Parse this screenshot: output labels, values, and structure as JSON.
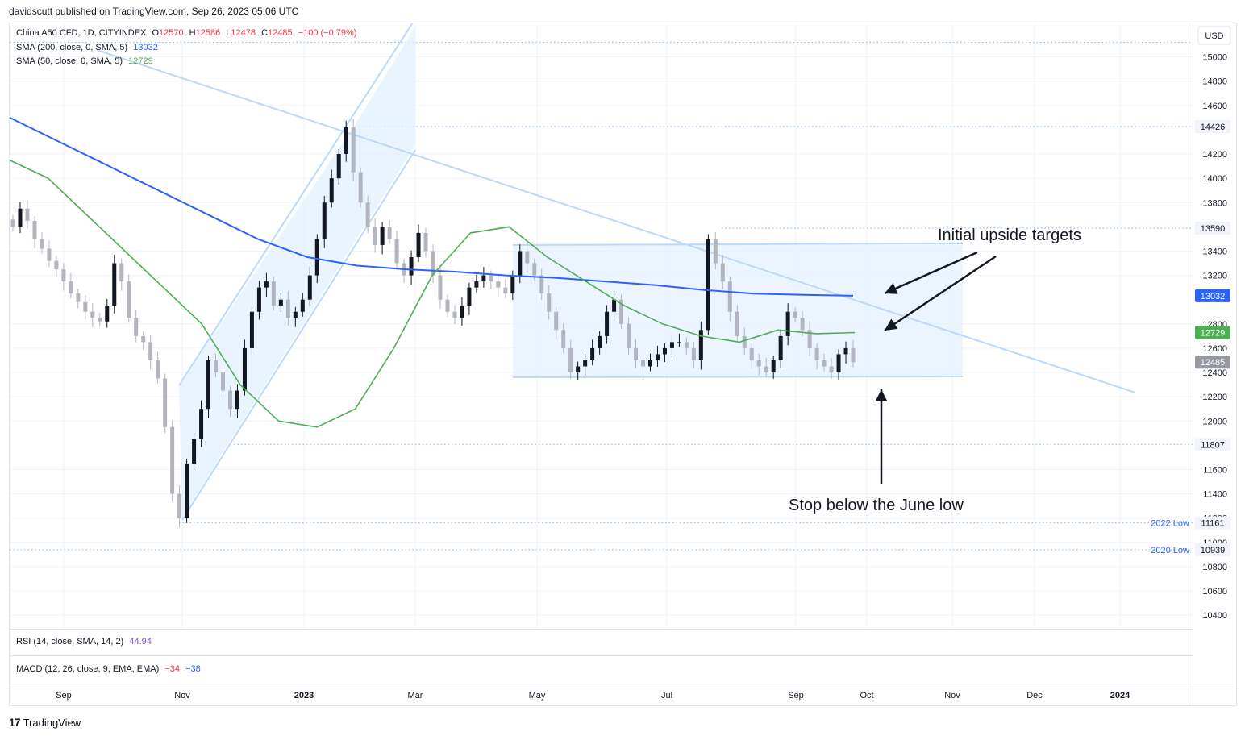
{
  "publisher": "davidscutt published on TradingView.com, Sep 26, 2023 05:06 UTC",
  "legend": {
    "symbol": "China A50 CFD, 1D, CITYINDEX",
    "o_label": "O",
    "o": "12570",
    "h_label": "H",
    "h": "12586",
    "l_label": "L",
    "l": "12478",
    "c_label": "C",
    "c": "12485",
    "change": "−100 (−0.79%)",
    "sma200_label": "SMA (200, close, 0, SMA, 5)",
    "sma200_value": "13032",
    "sma50_label": "SMA (50, close, 0, SMA, 5)",
    "sma50_value": "12729"
  },
  "indicators": {
    "rsi_label": "RSI (14, close, SMA, 14, 2)",
    "rsi_value": "44.94",
    "macd_label": "MACD (12, 26, close, 9, EMA, EMA)",
    "macd_v1": "−34",
    "macd_v2": "−38"
  },
  "currency": "USD",
  "brand": "TradingView",
  "colors": {
    "up": "#131722",
    "down": "#b2b5be",
    "sma200": "#2962ff",
    "sma50": "#4caf50",
    "trendline": "#bbd9fb",
    "channel_fill": "#e3f0ff",
    "red": "#f23645",
    "axis_text": "#131722"
  },
  "chart_data": {
    "type": "candlestick",
    "y_ticks": [
      15000,
      14800,
      14600,
      14200,
      14000,
      13800,
      13400,
      13200,
      12800,
      12600,
      12400,
      12200,
      12000,
      11600,
      11400,
      11200,
      11000,
      10800,
      10600,
      10400
    ],
    "ylim": [
      10300,
      15200
    ],
    "x_ticks": [
      {
        "label": "Sep",
        "bold": false,
        "index": 0
      },
      {
        "label": "Nov",
        "bold": false,
        "index": 1
      },
      {
        "label": "2023",
        "bold": true,
        "index": 2
      },
      {
        "label": "Mar",
        "bold": false,
        "index": 3
      },
      {
        "label": "May",
        "bold": false,
        "index": 4
      },
      {
        "label": "Jul",
        "bold": false,
        "index": 5
      },
      {
        "label": "Sep",
        "bold": false,
        "index": 6
      },
      {
        "label": "Oct",
        "bold": false,
        "index": 7
      },
      {
        "label": "Nov",
        "bold": false,
        "index": 8
      },
      {
        "label": "Dec",
        "bold": false,
        "index": 9
      },
      {
        "label": "2024",
        "bold": true,
        "index": 10
      }
    ],
    "price_tags": [
      {
        "value": "14426",
        "price": 14426,
        "style": "gray"
      },
      {
        "value": "13590",
        "price": 13590,
        "style": "gray"
      },
      {
        "value": "13032",
        "price": 13032,
        "style": "blue"
      },
      {
        "value": "12729",
        "price": 12729,
        "style": "green"
      },
      {
        "value": "12485",
        "price": 12485,
        "style": "dark"
      },
      {
        "value": "11807",
        "price": 11807,
        "style": "gray"
      },
      {
        "value": "11161",
        "price": 11161,
        "style": "gray",
        "note": "2022 Low"
      },
      {
        "value": "10939",
        "price": 10939,
        "style": "gray",
        "note": "2020 Low"
      }
    ],
    "dotted_levels": [
      15120,
      14426,
      13590,
      11807,
      11161,
      10939
    ],
    "annotations": [
      {
        "text": "Initial upside targets"
      },
      {
        "text": "Stop below the June low"
      }
    ],
    "candles_close": [
      13600,
      13750,
      13650,
      13500,
      13420,
      13320,
      13250,
      13150,
      13050,
      12980,
      12900,
      12850,
      12820,
      12950,
      13300,
      13150,
      12850,
      12700,
      12650,
      12500,
      12350,
      11950,
      11400,
      11200,
      11650,
      11850,
      12100,
      12500,
      12400,
      12250,
      12100,
      12250,
      12600,
      12900,
      13100,
      13150,
      12950,
      13000,
      12850,
      12900,
      13000,
      13200,
      13500,
      13800,
      14000,
      14200,
      14420,
      14050,
      13800,
      13600,
      13450,
      13600,
      13500,
      13300,
      13200,
      13350,
      13550,
      13400,
      13200,
      13000,
      12900,
      12850,
      12950,
      13100,
      13150,
      13200,
      13150,
      13100,
      13050,
      13200,
      13400,
      13300,
      13200,
      13050,
      12900,
      12750,
      12600,
      12400,
      12450,
      12500,
      12600,
      12700,
      12900,
      13000,
      12800,
      12600,
      12500,
      12450,
      12500,
      12550,
      12600,
      12650,
      12650,
      12600,
      12500,
      12750,
      13500,
      13300,
      13150,
      12900,
      12700,
      12600,
      12500,
      12450,
      12400,
      12500,
      12700,
      12900,
      12850,
      12750,
      12600,
      12500,
      12450,
      12400,
      12550,
      12600,
      12485
    ],
    "sma200": [
      14500,
      14300,
      14100,
      13900,
      13700,
      13500,
      13350,
      13280,
      13250,
      13230,
      13200,
      13180,
      13150,
      13120,
      13080,
      13050,
      13040,
      13032
    ],
    "sma50": [
      14150,
      14000,
      13700,
      13400,
      13100,
      12800,
      12300,
      12000,
      11950,
      12100,
      12600,
      13200,
      13550,
      13600,
      13350,
      13150,
      12950,
      12800,
      12700,
      12650,
      12750,
      12720,
      12729
    ],
    "rsi": 44.94,
    "macd": [
      -34,
      -38
    ]
  }
}
